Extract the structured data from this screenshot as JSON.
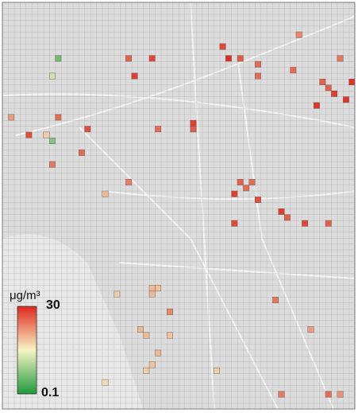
{
  "legend": {
    "unit": "μg/m³",
    "max": 30,
    "min": 0.1,
    "log_scale": true,
    "colors": [
      "#1e9a3c",
      "#f6f4c4",
      "#e0281e"
    ]
  },
  "grid": {
    "cols": 60,
    "rows": 69
  },
  "cells": [
    {
      "col": 37,
      "row": 7,
      "value": 20
    },
    {
      "col": 38,
      "row": 9,
      "value": 28
    },
    {
      "col": 40,
      "row": 9,
      "value": 15
    },
    {
      "col": 43,
      "row": 10,
      "value": 12
    },
    {
      "col": 43,
      "row": 12,
      "value": 12
    },
    {
      "col": 50,
      "row": 5,
      "value": 8
    },
    {
      "col": 57,
      "row": 9,
      "value": 10
    },
    {
      "col": 54,
      "row": 13,
      "value": 14
    },
    {
      "col": 55,
      "row": 14,
      "value": 14
    },
    {
      "col": 56,
      "row": 15,
      "value": 22
    },
    {
      "col": 58,
      "row": 16,
      "value": 25
    },
    {
      "col": 59,
      "row": 13,
      "value": 27
    },
    {
      "col": 53,
      "row": 17,
      "value": 25
    },
    {
      "col": 49,
      "row": 11,
      "value": 12
    },
    {
      "col": 9,
      "row": 9,
      "value": 0.3
    },
    {
      "col": 8,
      "row": 12,
      "value": 1
    },
    {
      "col": 22,
      "row": 12,
      "value": 22
    },
    {
      "col": 25,
      "row": 9,
      "value": 20
    },
    {
      "col": 21,
      "row": 9,
      "value": 14
    },
    {
      "col": 4,
      "row": 22,
      "value": 18
    },
    {
      "col": 7,
      "row": 22,
      "value": 3
    },
    {
      "col": 8,
      "row": 23,
      "value": 0.4
    },
    {
      "col": 1,
      "row": 19,
      "value": 6
    },
    {
      "col": 9,
      "row": 19,
      "value": 12
    },
    {
      "col": 14,
      "row": 21,
      "value": 18
    },
    {
      "col": 13,
      "row": 25,
      "value": 12
    },
    {
      "col": 8,
      "row": 27,
      "value": 10
    },
    {
      "col": 21,
      "row": 30,
      "value": 9
    },
    {
      "col": 17,
      "row": 32,
      "value": 4
    },
    {
      "col": 32,
      "row": 20,
      "value": 22
    },
    {
      "col": 32,
      "row": 21,
      "value": 15
    },
    {
      "col": 26,
      "row": 21,
      "value": 12
    },
    {
      "col": 40,
      "row": 30,
      "value": 14
    },
    {
      "col": 39,
      "row": 32,
      "value": 22
    },
    {
      "col": 41,
      "row": 31,
      "value": 12
    },
    {
      "col": 42,
      "row": 30,
      "value": 12
    },
    {
      "col": 43,
      "row": 33,
      "value": 18
    },
    {
      "col": 47,
      "row": 35,
      "value": 22
    },
    {
      "col": 48,
      "row": 36,
      "value": 14
    },
    {
      "col": 51,
      "row": 37,
      "value": 20
    },
    {
      "col": 55,
      "row": 37,
      "value": 14
    },
    {
      "col": 39,
      "row": 37,
      "value": 20
    },
    {
      "col": 46,
      "row": 50,
      "value": 10
    },
    {
      "col": 52,
      "row": 55,
      "value": 6
    },
    {
      "col": 47,
      "row": 66,
      "value": 10
    },
    {
      "col": 55,
      "row": 66,
      "value": 12
    },
    {
      "col": 57,
      "row": 66,
      "value": 7
    },
    {
      "col": 25,
      "row": 48,
      "value": 4
    },
    {
      "col": 26,
      "row": 48,
      "value": 3.5
    },
    {
      "col": 25,
      "row": 49,
      "value": 4
    },
    {
      "col": 19,
      "row": 49,
      "value": 3
    },
    {
      "col": 28,
      "row": 52,
      "value": 8
    },
    {
      "col": 23,
      "row": 55,
      "value": 4
    },
    {
      "col": 24,
      "row": 56,
      "value": 4
    },
    {
      "col": 28,
      "row": 56,
      "value": 3.5
    },
    {
      "col": 26,
      "row": 59,
      "value": 4
    },
    {
      "col": 24,
      "row": 62,
      "value": 3
    },
    {
      "col": 25,
      "row": 61,
      "value": 3.5
    },
    {
      "col": 36,
      "row": 62,
      "value": 3
    },
    {
      "col": 17,
      "row": 64,
      "value": 2.5
    }
  ]
}
